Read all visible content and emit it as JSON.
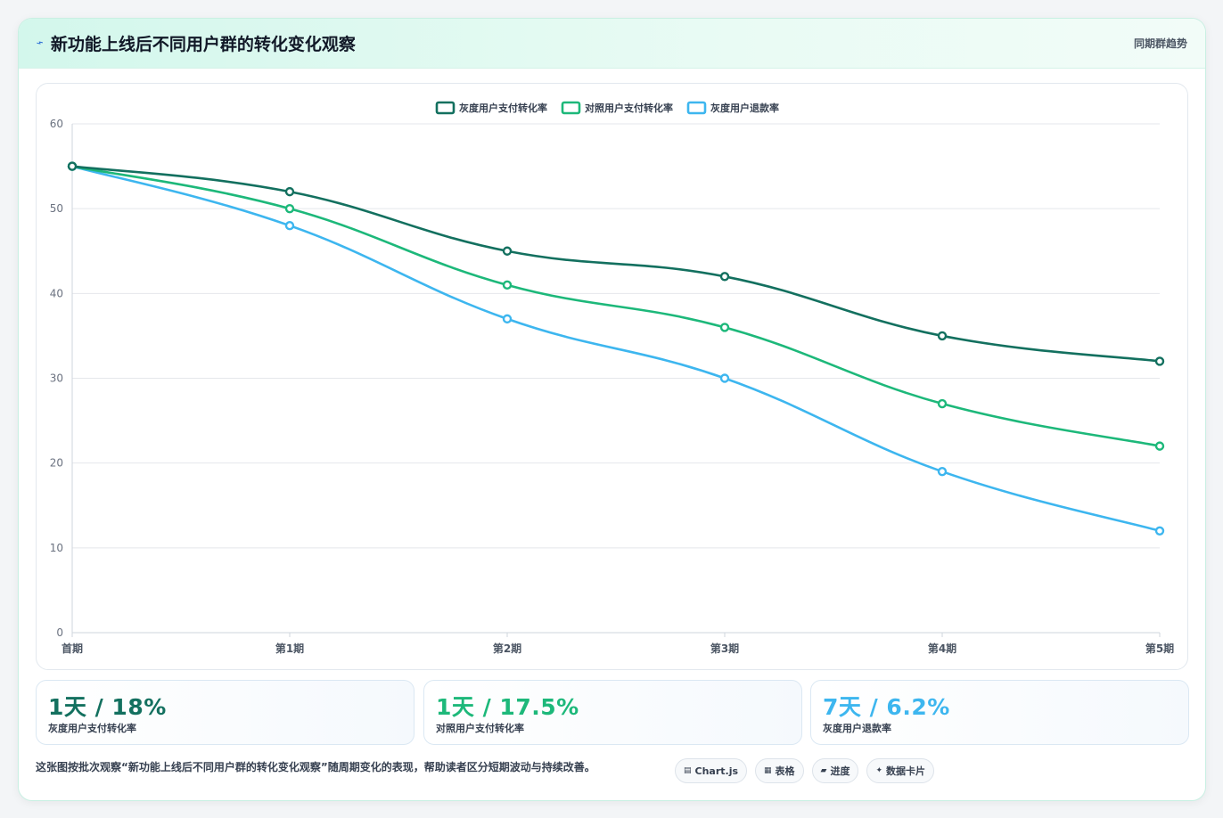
{
  "header": {
    "title": "新功能上线后不同用户群的转化变化观察",
    "right_label": "同期群趋势",
    "icon": "lightning-icon"
  },
  "chart_data": {
    "type": "line",
    "categories": [
      "首期",
      "第1期",
      "第2期",
      "第3期",
      "第4期",
      "第5期"
    ],
    "series": [
      {
        "name": "灰度用户支付转化率",
        "color": "#13705f",
        "values": [
          55,
          52,
          45,
          42,
          35,
          32
        ]
      },
      {
        "name": "对照用户支付转化率",
        "color": "#1db87a",
        "values": [
          55,
          50,
          41,
          36,
          27,
          22
        ]
      },
      {
        "name": "灰度用户退款率",
        "color": "#3db6ef",
        "values": [
          55,
          48,
          37,
          30,
          19,
          12
        ]
      }
    ],
    "ylim": [
      0,
      60
    ],
    "yticks": [
      0,
      10,
      20,
      30,
      40,
      50,
      60
    ],
    "grid": true,
    "legend_position": "top-center"
  },
  "kpis": [
    {
      "value": "1天 / 18%",
      "label": "灰度用户支付转化率",
      "color": "#13705f"
    },
    {
      "value": "1天 / 17.5%",
      "label": "对照用户支付转化率",
      "color": "#1db87a"
    },
    {
      "value": "7天 / 6.2%",
      "label": "灰度用户退款率",
      "color": "#3db6ef"
    }
  ],
  "footnote": "这张图按批次观察“新功能上线后不同用户群的转化变化观察”随周期变化的表现，帮助读者区分短期波动与持续改善。",
  "tags": [
    {
      "icon": "▤",
      "label": "Chart.js"
    },
    {
      "icon": "▦",
      "label": "表格"
    },
    {
      "icon": "▰",
      "label": "进度"
    },
    {
      "icon": "✦",
      "label": "数据卡片"
    }
  ]
}
